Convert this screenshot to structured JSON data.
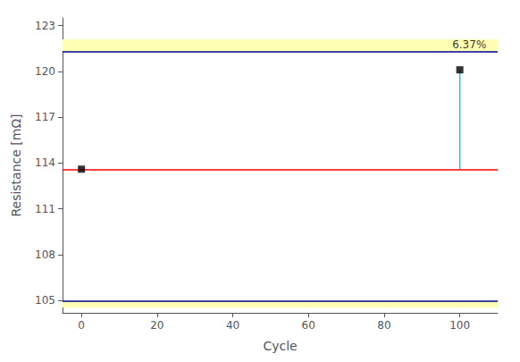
{
  "chart_data": {
    "type": "scatter",
    "xlabel": "Cycle",
    "ylabel": "Resistance [mΩ]",
    "x": [
      0,
      100
    ],
    "values": [
      113.6,
      120.1
    ],
    "color": "#000000",
    "marker": "square",
    "xlim": [
      -5,
      110
    ],
    "ylim": [
      104.2,
      123.5
    ],
    "xticks": [
      0,
      20,
      40,
      60,
      80,
      100
    ],
    "yticks": [
      105,
      108,
      111,
      114,
      117,
      120,
      123
    ],
    "grid": false,
    "hlines": [
      {
        "y": 121.3,
        "color": "#00008B"
      },
      {
        "y": 105.0,
        "color": "#00008B"
      },
      {
        "y": 113.6,
        "color": "#ff0000"
      }
    ],
    "bands": [
      {
        "y": [
          121.3,
          122.1
        ],
        "color": "#ffffb3"
      },
      {
        "y": [
          104.55,
          105.0
        ],
        "color": "#ffffb3"
      }
    ],
    "segments": [
      {
        "x": [
          100,
          100
        ],
        "y": [
          113.6,
          120.1
        ],
        "color": "#5aabcc"
      }
    ],
    "annotations": [
      {
        "text": "6.37%",
        "x": 107,
        "y": 121.75
      }
    ]
  }
}
